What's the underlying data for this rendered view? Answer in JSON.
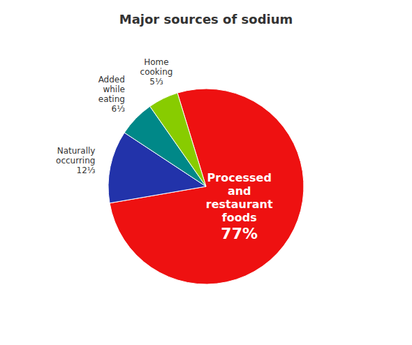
{
  "chart_data": {
    "type": "pie",
    "title": "Major sources of sodium",
    "categories": [
      "Processed\nand\nrestaurant\nfoods",
      "Naturally\noccurring",
      "Added\nwhile\neating",
      "Home\ncooking"
    ],
    "values": [
      77,
      12,
      6,
      5
    ],
    "value_labels": [
      "77%",
      "12⅓",
      "6⅓",
      "5⅓"
    ],
    "colors": [
      "#ee1111",
      "#2233aa",
      "#008888",
      "#88cc00"
    ]
  }
}
